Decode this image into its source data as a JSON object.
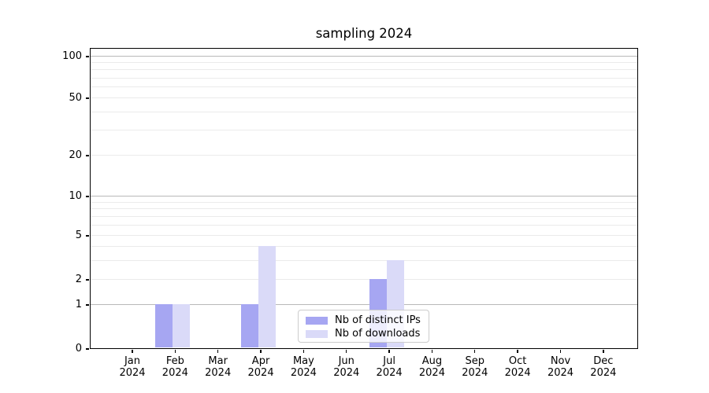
{
  "title": "sampling 2024",
  "chart_data": {
    "type": "bar",
    "title": "sampling 2024",
    "categories": [
      "Jan",
      "Feb",
      "Mar",
      "Apr",
      "May",
      "Jun",
      "Jul",
      "Aug",
      "Sep",
      "Oct",
      "Nov",
      "Dec"
    ],
    "category_year": "2024",
    "series": [
      {
        "name": "Nb of distinct IPs",
        "color": "#a6a6f2",
        "values": [
          0,
          1,
          0,
          1,
          0,
          0,
          2,
          0,
          0,
          0,
          0,
          0
        ]
      },
      {
        "name": "Nb of downloads",
        "color": "#dadaf8",
        "values": [
          0,
          1,
          0,
          4,
          0,
          0,
          3,
          0,
          0,
          0,
          0,
          0
        ]
      }
    ],
    "xlabel": "",
    "ylabel": "",
    "yscale": "symlog",
    "ylim": [
      0,
      115
    ],
    "ytick_values": [
      0,
      1,
      2,
      5,
      10,
      20,
      50,
      100
    ],
    "ytick_labels": [
      "0",
      "1",
      "2",
      "5",
      "10",
      "20",
      "50",
      "100"
    ],
    "minor_ytick_values": [
      3,
      4,
      6,
      7,
      8,
      9,
      30,
      40,
      60,
      70,
      80,
      90
    ],
    "grid": true,
    "legend_position": "lower center"
  },
  "colors": {
    "decade_grid": "#b8b8b8",
    "minor_grid": "#ebebeb",
    "axis": "#000000",
    "legend_border": "#cccccc",
    "text": "#000000"
  }
}
